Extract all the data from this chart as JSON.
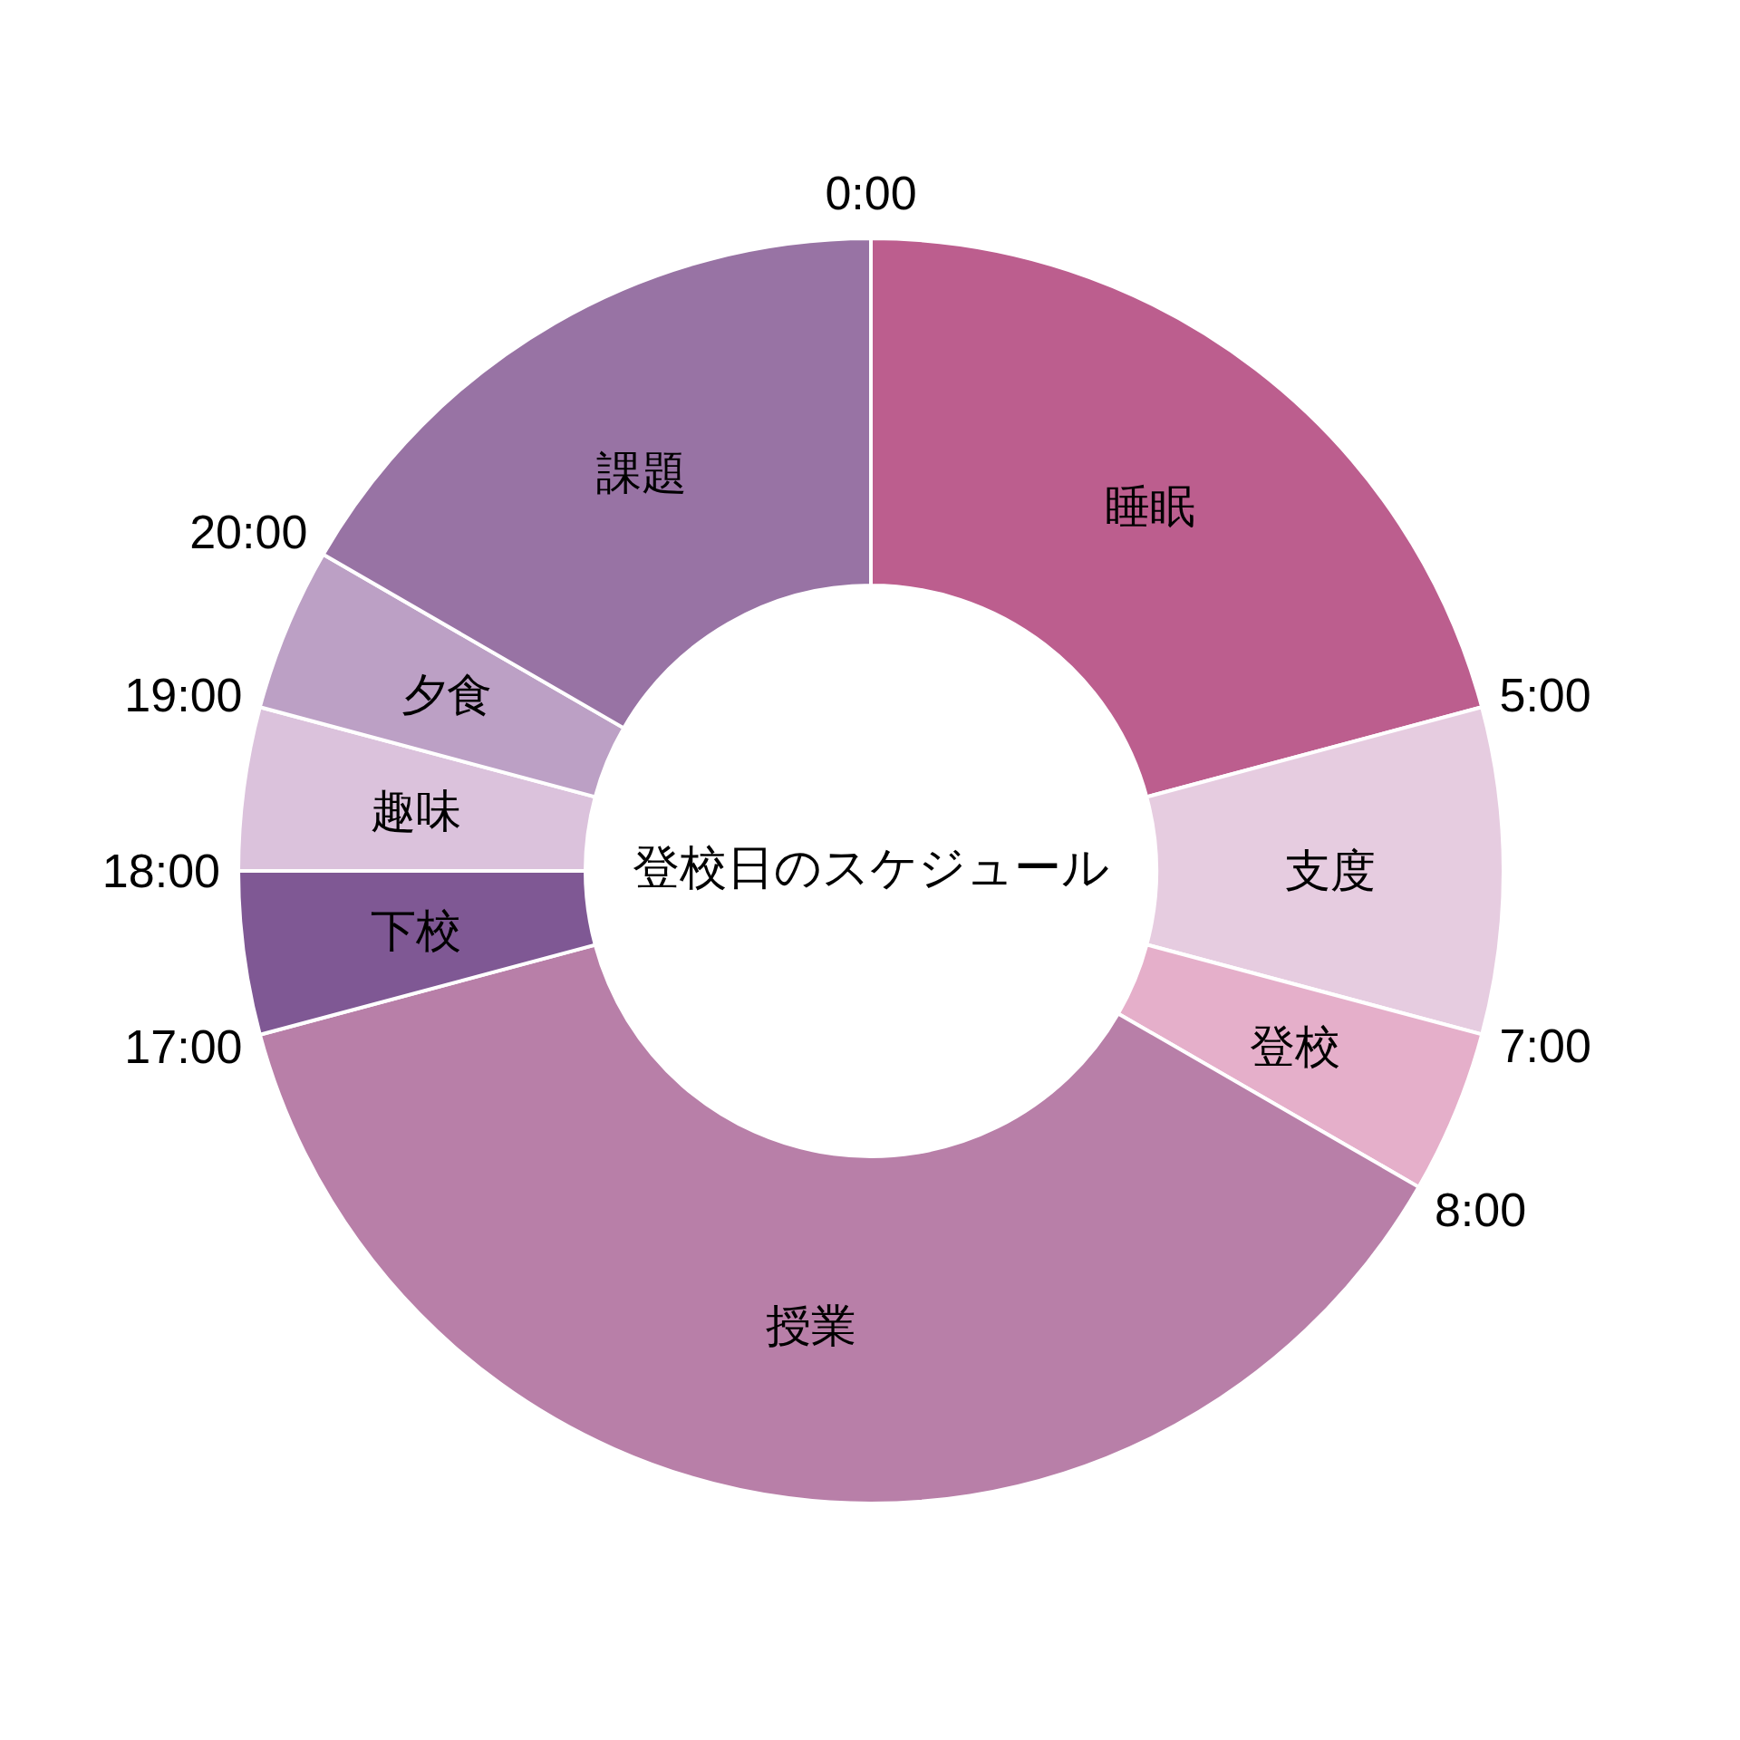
{
  "chart_data": {
    "type": "donut",
    "title": "登校日のスケジュール",
    "categories": [
      "睡眠",
      "支度",
      "登校",
      "授業",
      "下校",
      "趣味",
      "夕食",
      "課題"
    ],
    "values": [
      20.83,
      8.33,
      4.17,
      37.5,
      4.17,
      4.17,
      4.17,
      16.66
    ],
    "colors": [
      "#bc5e8e",
      "#e6cce0",
      "#e5afca",
      "#b87fa8",
      "#7f5894",
      "#dbc2dc",
      "#bca0c5",
      "#9873a4"
    ],
    "annotations": [
      "0:00",
      "5:00",
      "7:00",
      "8:00",
      "17:00",
      "18:00",
      "19:00",
      "20:00"
    ]
  }
}
